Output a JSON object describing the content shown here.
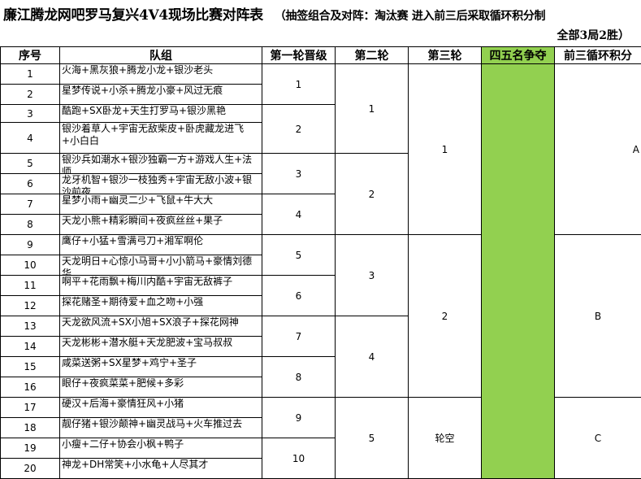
{
  "title": "廉江腾龙网吧罗马复兴4V4现场比赛对阵表",
  "note": "（抽签组合及对阵：淘汰赛 进入前三后采取循环积分制",
  "note2": "全部3局2胜）",
  "headers": [
    "序号",
    "队组",
    "第一轮晋级",
    "第二轮",
    "第三轮",
    "四五名争夺",
    "前三循环积分"
  ],
  "colors": {
    "highlight": "#92d050"
  },
  "teams": [
    "火海+黑灰狼+腾龙小龙+银沙老头",
    "星梦传说+小杀+腾龙小豪+风过无痕",
    "酷跑+SX卧龙+天生打罗马+银沙黑艳",
    "银沙着草人+宇宙无敌柴皮+卧虎藏龙进飞+小白白",
    "银沙兵如潮水+银沙独霸一方+游戏人生+法师",
    "龙牙机智+银沙一枝独秀+宇宙无敌小波+银沙前夜",
    "星梦小雨+幽灵二少+飞鼠+牛大大",
    "天龙小熊+精彩瞬间+夜疯丝丝+果子",
    "鹰仔+小猛+雪满弓刀+湘军啊伦",
    "天龙明日+心惊小马哥+小小箭马+豪情刘德华",
    "啊平+花雨飘+梅川内酷+宇宙无敌裤子",
    "探花赌圣+期待爱+血之吻+小强",
    "天龙欲风流+SX小旭+SX浪子+探花网神",
    "天龙彬彬+潜水艇+天龙肥波+宝马叔叔",
    "咸菜送粥+SX星梦+鸡宁+圣子",
    "眼仔+夜疯菜菜+肥候+多彩",
    "硬汉+后海+豪情狂风+小猪",
    "靓仔猪+银沙颠神+幽灵战马+火车推过去",
    "小瘦+二仔+协会小枫+鸭子",
    "神龙+DH常笑+小水龟+人尽其才"
  ],
  "round1": [
    "1",
    "2",
    "3",
    "4",
    "5",
    "6",
    "7",
    "8",
    "9",
    "10"
  ],
  "round2": [
    "1",
    "2",
    "3",
    "4",
    "5"
  ],
  "round3": [
    "1",
    "2",
    "轮空"
  ],
  "cycle": [
    "A",
    "B",
    "C"
  ]
}
